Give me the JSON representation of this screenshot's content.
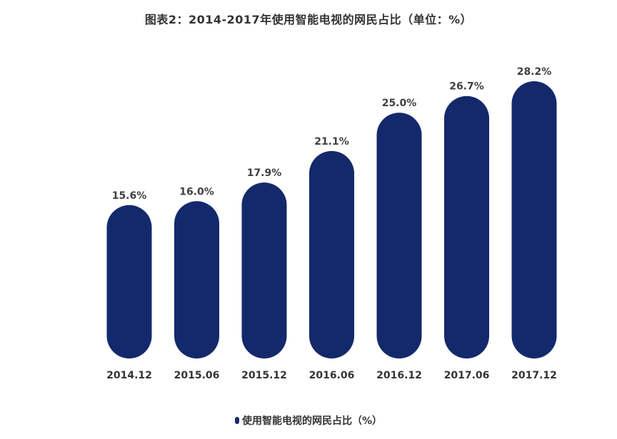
{
  "chart_data": {
    "type": "bar",
    "title": "图表2：2014-2017年使用智能电视的网民占比（单位：%）",
    "categories": [
      "2014.12",
      "2015.06",
      "2015.12",
      "2016.06",
      "2016.12",
      "2017.06",
      "2017.12"
    ],
    "series": [
      {
        "name": "使用智能电视的网民占比（%）",
        "values": [
          15.6,
          16.0,
          17.9,
          21.1,
          25.0,
          26.7,
          28.2
        ],
        "labels": [
          "15.6%",
          "16.0%",
          "17.9%",
          "21.1%",
          "25.0%",
          "26.7%",
          "28.2%"
        ],
        "color": "#13296b"
      }
    ],
    "ylim": [
      0,
      28.2
    ],
    "grid": false,
    "legend": "bottom"
  }
}
